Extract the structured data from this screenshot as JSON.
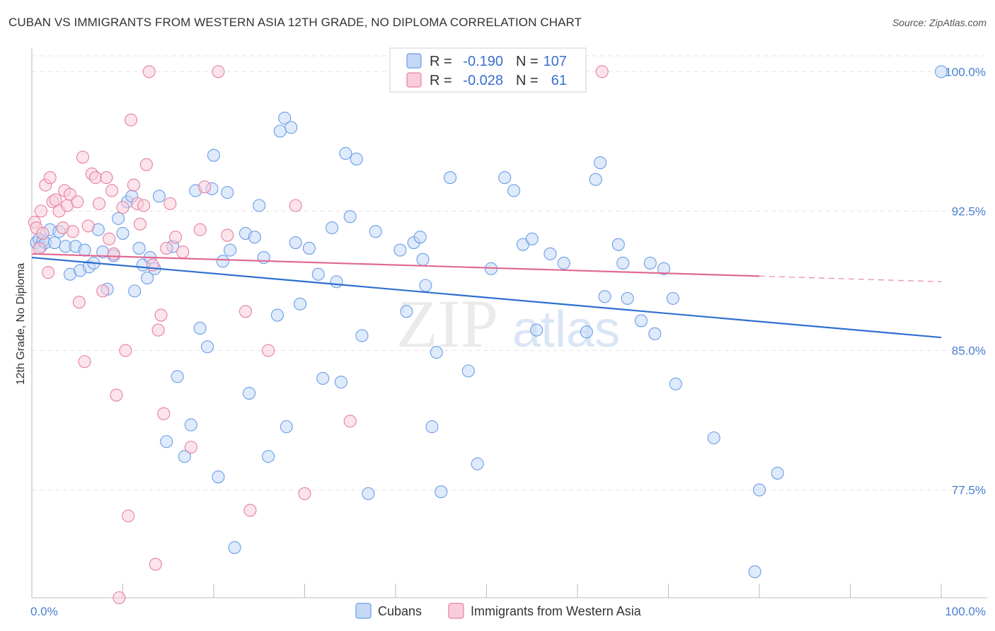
{
  "title": "CUBAN VS IMMIGRANTS FROM WESTERN ASIA 12TH GRADE, NO DIPLOMA CORRELATION CHART",
  "source": "Source: ZipAtlas.com",
  "watermark": {
    "zip": "ZIP",
    "atlas": "atlas"
  },
  "chart_data": {
    "type": "scatter",
    "title": "CUBAN VS IMMIGRANTS FROM WESTERN ASIA 12TH GRADE, NO DIPLOMA CORRELATION CHART",
    "xlabel": "",
    "ylabel": "12th Grade, No Diploma",
    "xlim": [
      0,
      100
    ],
    "ylim": [
      71.7,
      101.0
    ],
    "x_tick_labels": [
      "0.0%",
      "100.0%"
    ],
    "y_ticks": [
      77.5,
      85.0,
      92.5,
      100.0
    ],
    "y_tick_labels": [
      "77.5%",
      "85.0%",
      "92.5%",
      "100.0%"
    ],
    "grid": true,
    "legend": {
      "position": "top-center",
      "entries": [
        {
          "r_label": "R =",
          "r_value": "-0.190",
          "n_label": "N =",
          "n_value": "107"
        },
        {
          "r_label": "R =",
          "r_value": "-0.028",
          "n_label": "N =",
          "n_value": "61"
        }
      ]
    },
    "series": [
      {
        "name": "Cubans",
        "color": "#6b9de8",
        "fill": "#c5d8f5",
        "trend": {
          "x0": 0,
          "y0": 90.0,
          "x1": 100,
          "y1": 85.7,
          "solid_to": 100
        },
        "points": [
          [
            0.5,
            90.8
          ],
          [
            0.8,
            91.0
          ],
          [
            1.0,
            90.6
          ],
          [
            1.2,
            90.9
          ],
          [
            1.5,
            90.8
          ],
          [
            2.0,
            91.5
          ],
          [
            2.5,
            90.8
          ],
          [
            3.0,
            91.4
          ],
          [
            3.7,
            90.6
          ],
          [
            4.2,
            89.1
          ],
          [
            4.8,
            90.6
          ],
          [
            5.3,
            89.3
          ],
          [
            5.8,
            90.4
          ],
          [
            6.3,
            89.5
          ],
          [
            6.8,
            89.7
          ],
          [
            7.3,
            91.5
          ],
          [
            7.8,
            90.3
          ],
          [
            8.3,
            88.3
          ],
          [
            9.0,
            90.1
          ],
          [
            9.5,
            92.1
          ],
          [
            10.0,
            91.3
          ],
          [
            10.5,
            93.0
          ],
          [
            11.0,
            93.3
          ],
          [
            11.3,
            88.2
          ],
          [
            11.8,
            90.5
          ],
          [
            12.2,
            89.6
          ],
          [
            12.7,
            88.9
          ],
          [
            13.0,
            90.0
          ],
          [
            13.5,
            89.4
          ],
          [
            14.0,
            93.3
          ],
          [
            14.8,
            80.1
          ],
          [
            15.5,
            90.6
          ],
          [
            16.0,
            83.6
          ],
          [
            16.8,
            79.3
          ],
          [
            17.5,
            81.0
          ],
          [
            18.0,
            93.6
          ],
          [
            18.5,
            86.2
          ],
          [
            19.3,
            85.2
          ],
          [
            19.8,
            93.7
          ],
          [
            20.0,
            95.5
          ],
          [
            20.5,
            78.2
          ],
          [
            21.0,
            89.8
          ],
          [
            21.5,
            93.5
          ],
          [
            21.8,
            90.4
          ],
          [
            22.3,
            74.4
          ],
          [
            23.5,
            91.3
          ],
          [
            23.9,
            82.7
          ],
          [
            24.5,
            91.1
          ],
          [
            25.0,
            92.8
          ],
          [
            25.5,
            90.0
          ],
          [
            26.0,
            79.3
          ],
          [
            27.0,
            86.9
          ],
          [
            27.3,
            96.8
          ],
          [
            27.8,
            97.5
          ],
          [
            28.0,
            80.9
          ],
          [
            28.5,
            97.0
          ],
          [
            29.0,
            90.8
          ],
          [
            29.5,
            87.5
          ],
          [
            30.5,
            90.5
          ],
          [
            31.5,
            89.1
          ],
          [
            32.0,
            83.5
          ],
          [
            33.0,
            91.6
          ],
          [
            33.5,
            88.7
          ],
          [
            34.0,
            83.3
          ],
          [
            34.5,
            95.6
          ],
          [
            35.0,
            92.2
          ],
          [
            35.7,
            95.3
          ],
          [
            36.3,
            85.8
          ],
          [
            37.0,
            77.3
          ],
          [
            37.8,
            91.4
          ],
          [
            40.5,
            90.4
          ],
          [
            41.2,
            87.1
          ],
          [
            42.0,
            90.8
          ],
          [
            42.7,
            91.1
          ],
          [
            43.0,
            89.9
          ],
          [
            43.3,
            88.5
          ],
          [
            44.0,
            80.9
          ],
          [
            44.5,
            84.9
          ],
          [
            45.0,
            77.4
          ],
          [
            46.0,
            94.3
          ],
          [
            48.0,
            83.9
          ],
          [
            49.0,
            78.9
          ],
          [
            50.5,
            89.4
          ],
          [
            52.0,
            94.3
          ],
          [
            53.0,
            93.6
          ],
          [
            54.0,
            90.7
          ],
          [
            55.0,
            91.0
          ],
          [
            55.5,
            86.1
          ],
          [
            57.0,
            90.2
          ],
          [
            58.5,
            89.7
          ],
          [
            61.0,
            86.0
          ],
          [
            62.0,
            94.2
          ],
          [
            62.5,
            95.1
          ],
          [
            63.0,
            87.9
          ],
          [
            64.5,
            90.7
          ],
          [
            65.0,
            89.7
          ],
          [
            65.5,
            87.8
          ],
          [
            67.0,
            86.6
          ],
          [
            68.0,
            89.7
          ],
          [
            68.5,
            85.9
          ],
          [
            69.5,
            89.4
          ],
          [
            70.5,
            87.8
          ],
          [
            70.8,
            83.2
          ],
          [
            75.0,
            80.3
          ],
          [
            79.5,
            73.1
          ],
          [
            80.0,
            77.5
          ],
          [
            82.0,
            78.4
          ],
          [
            100.0,
            100.0
          ]
        ]
      },
      {
        "name": "Immigrants from Western Asia",
        "color": "#e87fa2",
        "fill": "#f8cdd9",
        "trend": {
          "x0": 0,
          "y0": 90.2,
          "x1": 100,
          "y1": 88.7,
          "solid_to": 80.0
        },
        "points": [
          [
            0.3,
            91.9
          ],
          [
            0.5,
            91.6
          ],
          [
            0.8,
            90.5
          ],
          [
            1.0,
            92.5
          ],
          [
            1.2,
            91.3
          ],
          [
            1.5,
            93.9
          ],
          [
            1.8,
            89.2
          ],
          [
            2.0,
            94.3
          ],
          [
            2.3,
            93.0
          ],
          [
            2.6,
            93.1
          ],
          [
            3.0,
            92.5
          ],
          [
            3.4,
            91.6
          ],
          [
            3.6,
            93.6
          ],
          [
            3.9,
            92.8
          ],
          [
            4.2,
            93.4
          ],
          [
            4.5,
            91.4
          ],
          [
            5.0,
            93.0
          ],
          [
            5.2,
            87.6
          ],
          [
            5.6,
            95.4
          ],
          [
            5.8,
            84.4
          ],
          [
            6.2,
            91.7
          ],
          [
            6.6,
            94.5
          ],
          [
            7.0,
            94.3
          ],
          [
            7.4,
            92.9
          ],
          [
            7.8,
            88.2
          ],
          [
            8.2,
            94.3
          ],
          [
            8.5,
            91.0
          ],
          [
            8.8,
            93.6
          ],
          [
            9.0,
            90.2
          ],
          [
            9.3,
            82.6
          ],
          [
            9.6,
            71.7
          ],
          [
            10.0,
            92.7
          ],
          [
            10.3,
            85.0
          ],
          [
            10.6,
            76.1
          ],
          [
            10.9,
            97.4
          ],
          [
            11.2,
            93.9
          ],
          [
            11.6,
            92.9
          ],
          [
            11.9,
            91.8
          ],
          [
            12.3,
            92.8
          ],
          [
            12.6,
            95.0
          ],
          [
            12.9,
            100.0
          ],
          [
            13.3,
            89.6
          ],
          [
            13.6,
            73.5
          ],
          [
            13.9,
            86.1
          ],
          [
            14.2,
            86.9
          ],
          [
            14.5,
            81.6
          ],
          [
            14.8,
            90.5
          ],
          [
            15.2,
            92.9
          ],
          [
            15.8,
            91.1
          ],
          [
            16.6,
            90.3
          ],
          [
            17.5,
            79.8
          ],
          [
            18.5,
            91.5
          ],
          [
            19.0,
            93.8
          ],
          [
            20.5,
            100.0
          ],
          [
            21.5,
            91.2
          ],
          [
            23.5,
            87.1
          ],
          [
            24.0,
            76.4
          ],
          [
            26.0,
            85.0
          ],
          [
            29.0,
            92.8
          ],
          [
            30.0,
            77.3
          ],
          [
            35.0,
            81.2
          ],
          [
            62.7,
            100.0
          ]
        ]
      }
    ]
  }
}
